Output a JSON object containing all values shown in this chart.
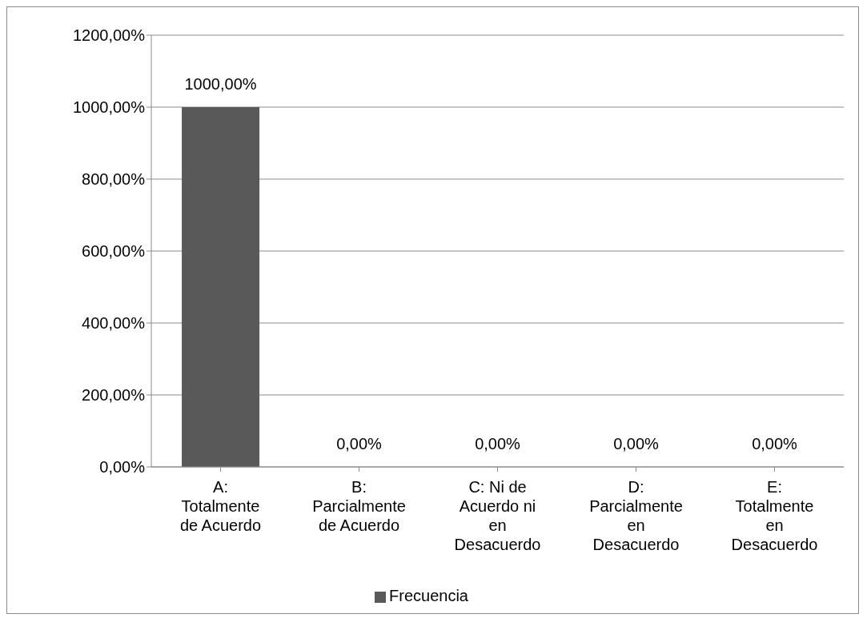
{
  "chart_data": {
    "type": "bar",
    "categories": [
      "A: Totalmente de Acuerdo",
      "B: Parcialmente de Acuerdo",
      "C: Ni de Acuerdo ni en Desacuerdo",
      "D: Parcialmente en Desacuerdo",
      "E: Totalmente en Desacuerdo"
    ],
    "series": [
      {
        "name": "Frecuencia",
        "color": "#595959",
        "values": [
          1000,
          0,
          0,
          0,
          0
        ],
        "value_labels": [
          "1000,00%",
          "0,00%",
          "0,00%",
          "0,00%",
          "0,00%"
        ]
      }
    ],
    "ylim": [
      0,
      1200
    ],
    "yticks": [
      {
        "value": 0,
        "label": "0,00%"
      },
      {
        "value": 200,
        "label": "200,00%"
      },
      {
        "value": 400,
        "label": "400,00%"
      },
      {
        "value": 600,
        "label": "600,00%"
      },
      {
        "value": 800,
        "label": "800,00%"
      },
      {
        "value": 1000,
        "label": "1000,00%"
      },
      {
        "value": 1200,
        "label": "1200,00%"
      }
    ],
    "grid": "y",
    "legend": "bottom"
  }
}
